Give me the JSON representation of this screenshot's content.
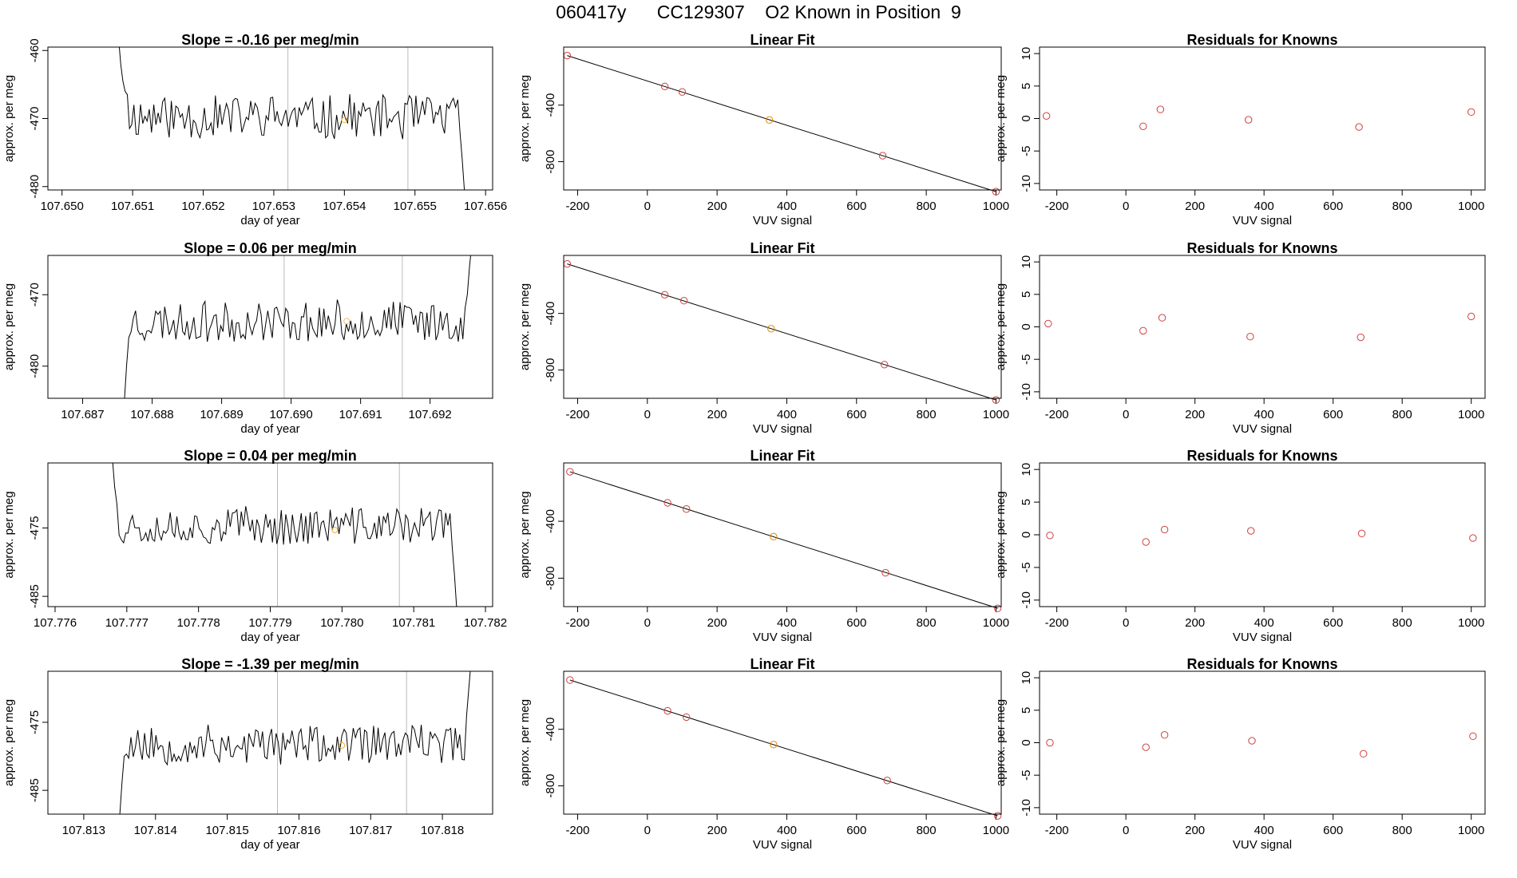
{
  "figure": {
    "title": "060417y      CC129307    O2 Known in Position  9"
  },
  "chart_data": [
    {
      "type": "line",
      "title": "Slope =  -0.16  per meg/min",
      "xlabel": "day of year",
      "ylabel": "approx. per meg",
      "xlim": [
        107.6498,
        107.6561
      ],
      "ylim": [
        -480.5,
        -459.5
      ],
      "xticks": [
        "107.650",
        "107.651",
        "107.652",
        "107.653",
        "107.654",
        "107.655",
        "107.656"
      ],
      "xtick_values": [
        107.65,
        107.651,
        107.652,
        107.653,
        107.654,
        107.655,
        107.656
      ],
      "yticks": [
        "-460",
        "-470",
        "-480"
      ],
      "ytick_values": [
        -460,
        -470,
        -480
      ],
      "vlines": [
        107.6532,
        107.6549
      ],
      "trace": {
        "start": 107.6508,
        "end": 107.6557,
        "base": -469.8,
        "amp": 3.2,
        "seed": 11,
        "head": [
          -458,
          -462,
          -464.5,
          -466,
          -466.5
        ],
        "tail": [
          -472,
          -476,
          -480.5
        ]
      },
      "known_point": {
        "x": 107.654,
        "y": -470.2,
        "color": "#f0b030"
      }
    },
    {
      "type": "scatter",
      "title": "Linear Fit",
      "xlabel": "VUV signal",
      "ylabel": "approx. per meg",
      "xlim": [
        -240,
        1015
      ],
      "ylim": [
        -1000,
        10
      ],
      "xticks": [
        "-200",
        "0",
        "200",
        "400",
        "600",
        "800",
        "1000"
      ],
      "xtick_values": [
        -200,
        0,
        200,
        400,
        600,
        800,
        1000
      ],
      "yticks": [
        "-400",
        "-800"
      ],
      "ytick_values": [
        -400,
        -800
      ],
      "points": [
        {
          "x": -230,
          "y": -50
        },
        {
          "x": 50,
          "y": -268
        },
        {
          "x": 100,
          "y": -307
        },
        {
          "x": 350,
          "y": -505,
          "known": true
        },
        {
          "x": 675,
          "y": -758
        },
        {
          "x": 1000,
          "y": -1012
        }
      ],
      "fit_line": {
        "x1": -230,
        "y1": -50,
        "x2": 1000,
        "y2": -1012
      },
      "point_color": "#d04040",
      "known_color": "#e08a00"
    },
    {
      "type": "scatter",
      "title": "Residuals for Knowns",
      "xlabel": "VUV signal",
      "ylabel": "approx. per meg",
      "xlim": [
        -250,
        1040
      ],
      "ylim": [
        -11,
        11
      ],
      "xticks": [
        "-200",
        "0",
        "200",
        "400",
        "600",
        "800",
        "1000"
      ],
      "xtick_values": [
        -200,
        0,
        200,
        400,
        600,
        800,
        1000
      ],
      "yticks": [
        "10",
        "5",
        "0",
        "-5",
        "-10"
      ],
      "ytick_values": [
        10,
        5,
        0,
        -5,
        -10
      ],
      "points": [
        {
          "x": -230,
          "y": 0.4
        },
        {
          "x": 50,
          "y": -1.2
        },
        {
          "x": 100,
          "y": 1.4
        },
        {
          "x": 355,
          "y": -0.2
        },
        {
          "x": 675,
          "y": -1.3
        },
        {
          "x": 1000,
          "y": 1.0
        }
      ],
      "point_color": "#d04040"
    },
    {
      "type": "line",
      "title": "Slope =  0.06  per meg/min",
      "xlabel": "day of year",
      "ylabel": "approx. per meg",
      "xlim": [
        107.6865,
        107.6929
      ],
      "ylim": [
        -484.5,
        -464.5
      ],
      "xticks": [
        "107.687",
        "107.688",
        "107.689",
        "107.690",
        "107.691",
        "107.692"
      ],
      "xtick_values": [
        107.687,
        107.688,
        107.689,
        107.69,
        107.691,
        107.692
      ],
      "yticks": [
        "-470",
        "-480"
      ],
      "ytick_values": [
        -470,
        -480
      ],
      "vlines": [
        107.6899,
        107.6916
      ],
      "trace": {
        "start": 107.6876,
        "end": 107.6926,
        "base": -473.8,
        "amp": 2.7,
        "seed": 23,
        "head": [
          -485,
          -480,
          -476
        ],
        "tail": [
          -470,
          -466,
          -463
        ]
      },
      "known_point": {
        "x": 107.6908,
        "y": -473.7,
        "color": "#f0c060"
      }
    },
    {
      "type": "scatter",
      "title": "Linear Fit",
      "xlabel": "VUV signal",
      "ylabel": "approx. per meg",
      "xlim": [
        -240,
        1015
      ],
      "ylim": [
        -1000,
        10
      ],
      "xticks": [
        "-200",
        "0",
        "200",
        "400",
        "600",
        "800",
        "1000"
      ],
      "xtick_values": [
        -200,
        0,
        200,
        400,
        600,
        800,
        1000
      ],
      "yticks": [
        "-400",
        "-800"
      ],
      "ytick_values": [
        -400,
        -800
      ],
      "points": [
        {
          "x": -230,
          "y": -50
        },
        {
          "x": 50,
          "y": -268
        },
        {
          "x": 105,
          "y": -310
        },
        {
          "x": 355,
          "y": -508,
          "known": true
        },
        {
          "x": 680,
          "y": -762
        },
        {
          "x": 1000,
          "y": -1012
        }
      ],
      "fit_line": {
        "x1": -230,
        "y1": -50,
        "x2": 1000,
        "y2": -1012
      },
      "point_color": "#d04040",
      "known_color": "#e08a00"
    },
    {
      "type": "scatter",
      "title": "Residuals for Knowns",
      "xlabel": "VUV signal",
      "ylabel": "approx. per meg",
      "xlim": [
        -250,
        1040
      ],
      "ylim": [
        -11,
        11
      ],
      "xticks": [
        "-200",
        "0",
        "200",
        "400",
        "600",
        "800",
        "1000"
      ],
      "xtick_values": [
        -200,
        0,
        200,
        400,
        600,
        800,
        1000
      ],
      "yticks": [
        "10",
        "5",
        "0",
        "-5",
        "-10"
      ],
      "ytick_values": [
        10,
        5,
        0,
        -5,
        -10
      ],
      "points": [
        {
          "x": -225,
          "y": 0.5
        },
        {
          "x": 50,
          "y": -0.6
        },
        {
          "x": 105,
          "y": 1.4
        },
        {
          "x": 360,
          "y": -1.5
        },
        {
          "x": 680,
          "y": -1.6
        },
        {
          "x": 1000,
          "y": 1.6
        }
      ],
      "point_color": "#d04040"
    },
    {
      "type": "line",
      "title": "Slope =  0.04  per meg/min",
      "xlabel": "day of year",
      "ylabel": "approx. per meg",
      "xlim": [
        107.7759,
        107.7821
      ],
      "ylim": [
        -486.5,
        -465.5
      ],
      "xticks": [
        "107.776",
        "107.777",
        "107.778",
        "107.779",
        "107.780",
        "107.781",
        "107.782"
      ],
      "xtick_values": [
        107.776,
        107.777,
        107.778,
        107.779,
        107.78,
        107.781,
        107.782
      ],
      "yticks": [
        "-475",
        "-485"
      ],
      "ytick_values": [
        -475,
        -485
      ],
      "vlines": [
        107.7791,
        107.7808
      ],
      "trace": {
        "start": 107.7768,
        "end": 107.7816,
        "base": -474.7,
        "amp": 2.7,
        "seed": 37,
        "head": [
          -465,
          -469,
          -471.5
        ],
        "tail": [
          -478,
          -482,
          -487
        ]
      },
      "known_point": {
        "x": 107.7799,
        "y": -475.3,
        "color": "#f0b030"
      }
    },
    {
      "type": "scatter",
      "title": "Linear Fit",
      "xlabel": "VUV signal",
      "ylabel": "approx. per meg",
      "xlim": [
        -240,
        1015
      ],
      "ylim": [
        -1000,
        10
      ],
      "xticks": [
        "-200",
        "0",
        "200",
        "400",
        "600",
        "800",
        "1000"
      ],
      "xtick_values": [
        -200,
        0,
        200,
        400,
        600,
        800,
        1000
      ],
      "yticks": [
        "-400",
        "-800"
      ],
      "ytick_values": [
        -400,
        -800
      ],
      "points": [
        {
          "x": -222,
          "y": -52
        },
        {
          "x": 58,
          "y": -270
        },
        {
          "x": 112,
          "y": -314
        },
        {
          "x": 362,
          "y": -508,
          "known": true
        },
        {
          "x": 683,
          "y": -762
        },
        {
          "x": 1005,
          "y": -1012
        }
      ],
      "fit_line": {
        "x1": -222,
        "y1": -52,
        "x2": 1005,
        "y2": -1012
      },
      "point_color": "#d04040",
      "known_color": "#e08a00"
    },
    {
      "type": "scatter",
      "title": "Residuals for Knowns",
      "xlabel": "VUV signal",
      "ylabel": "approx. per meg",
      "xlim": [
        -250,
        1040
      ],
      "ylim": [
        -11,
        11
      ],
      "xticks": [
        "-200",
        "0",
        "200",
        "400",
        "600",
        "800",
        "1000"
      ],
      "xtick_values": [
        -200,
        0,
        200,
        400,
        600,
        800,
        1000
      ],
      "yticks": [
        "10",
        "5",
        "0",
        "-5",
        "-10"
      ],
      "ytick_values": [
        10,
        5,
        0,
        -5,
        -10
      ],
      "points": [
        {
          "x": -220,
          "y": -0.1
        },
        {
          "x": 58,
          "y": -1.1
        },
        {
          "x": 112,
          "y": 0.8
        },
        {
          "x": 362,
          "y": 0.6
        },
        {
          "x": 683,
          "y": 0.2
        },
        {
          "x": 1005,
          "y": -0.5
        }
      ],
      "point_color": "#d04040"
    },
    {
      "type": "line",
      "title": "Slope =  -1.39  per meg/min",
      "xlabel": "day of year",
      "ylabel": "approx. per meg",
      "xlim": [
        107.8125,
        107.8187
      ],
      "ylim": [
        -488.5,
        -467.5
      ],
      "xticks": [
        "107.813",
        "107.814",
        "107.815",
        "107.816",
        "107.817",
        "107.818"
      ],
      "xtick_values": [
        107.813,
        107.814,
        107.815,
        107.816,
        107.817,
        107.818
      ],
      "yticks": [
        "-475",
        "-485"
      ],
      "ytick_values": [
        -475,
        -485
      ],
      "vlines": [
        107.8157,
        107.8175
      ],
      "trace": {
        "start": 107.8135,
        "end": 107.8184,
        "base": -478.3,
        "amp": 2.8,
        "seed": 53,
        "head": [
          -489,
          -484,
          -480
        ],
        "tail": [
          -474,
          -470,
          -466
        ]
      },
      "known_point": {
        "x": 107.8166,
        "y": -478.4,
        "color": "#f0b030"
      }
    },
    {
      "type": "scatter",
      "title": "Linear Fit",
      "xlabel": "VUV signal",
      "ylabel": "approx. per meg",
      "xlim": [
        -240,
        1015
      ],
      "ylim": [
        -1000,
        10
      ],
      "xticks": [
        "-200",
        "0",
        "200",
        "400",
        "600",
        "800",
        "1000"
      ],
      "xtick_values": [
        -200,
        0,
        200,
        400,
        600,
        800,
        1000
      ],
      "yticks": [
        "-400",
        "-800"
      ],
      "ytick_values": [
        -400,
        -800
      ],
      "points": [
        {
          "x": -222,
          "y": -52
        },
        {
          "x": 58,
          "y": -270
        },
        {
          "x": 112,
          "y": -314
        },
        {
          "x": 362,
          "y": -508,
          "known": true
        },
        {
          "x": 688,
          "y": -762
        },
        {
          "x": 1005,
          "y": -1012
        }
      ],
      "fit_line": {
        "x1": -222,
        "y1": -52,
        "x2": 1005,
        "y2": -1012
      },
      "point_color": "#d04040",
      "known_color": "#e08a00"
    },
    {
      "type": "scatter",
      "title": "Residuals for Knowns",
      "xlabel": "VUV signal",
      "ylabel": "approx. per meg",
      "xlim": [
        -250,
        1040
      ],
      "ylim": [
        -11,
        11
      ],
      "xticks": [
        "-200",
        "0",
        "200",
        "400",
        "600",
        "800",
        "1000"
      ],
      "xtick_values": [
        -200,
        0,
        200,
        400,
        600,
        800,
        1000
      ],
      "yticks": [
        "10",
        "5",
        "0",
        "-5",
        "-10"
      ],
      "ytick_values": [
        10,
        5,
        0,
        -5,
        -10
      ],
      "points": [
        {
          "x": -220,
          "y": 0.0
        },
        {
          "x": 58,
          "y": -0.7
        },
        {
          "x": 112,
          "y": 1.2
        },
        {
          "x": 365,
          "y": 0.3
        },
        {
          "x": 688,
          "y": -1.7
        },
        {
          "x": 1005,
          "y": 1.0
        }
      ],
      "point_color": "#d04040"
    }
  ]
}
